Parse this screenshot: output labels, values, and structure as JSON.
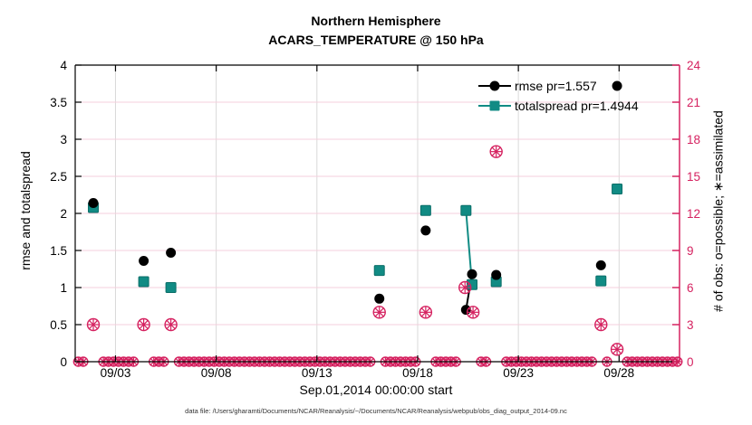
{
  "title": {
    "line1": "Northern Hemisphere",
    "line2": "ACARS_TEMPERATURE @ 150 hPa"
  },
  "caption": "data file: /Users/gharamti/Documents/NCAR/Reanalysis/~/Documents/NCAR/Reanalysis/webpub/obs_diag_output_2014-09.nc",
  "colors": {
    "rmse": "#000000",
    "totalspread": "#118B84",
    "totalspread_edge": "#0B6E68",
    "obs": "#D52260",
    "grid_horizontal": "#F5CFDC",
    "grid_vertical": "#D9D9D9",
    "axis": "#000000"
  },
  "chart_data": {
    "type": "scatter",
    "title": "Northern Hemisphere",
    "subtitle": "ACARS_TEMPERATURE @ 150 hPa",
    "xlabel": "Sep.01,2014 00:00:00 start",
    "ylabel_left": "rmse and totalspread",
    "ylabel_right": "# of obs: o=possible; ∗=assimilated",
    "x_range_days": [
      1,
      31
    ],
    "x_ticks": [
      "09/03",
      "09/08",
      "09/13",
      "09/18",
      "09/23",
      "09/28"
    ],
    "x_tick_days": [
      3,
      8,
      13,
      18,
      23,
      28
    ],
    "ylim_left": [
      0,
      4
    ],
    "yticks_left": [
      "0",
      "0.5",
      "1",
      "1.5",
      "2",
      "2.5",
      "3",
      "3.5",
      "4"
    ],
    "ytick_values_left": [
      0,
      0.5,
      1,
      1.5,
      2,
      2.5,
      3,
      3.5,
      4
    ],
    "ylim_right": [
      0,
      24
    ],
    "yticks_right": [
      "0",
      "3",
      "6",
      "9",
      "12",
      "15",
      "18",
      "21",
      "24"
    ],
    "ytick_values_right": [
      0,
      3,
      6,
      9,
      12,
      15,
      18,
      21,
      24
    ],
    "grid": true,
    "legend_position": "top-right-inside",
    "legend": [
      {
        "label": "rmse pr=1.557",
        "series": "rmse",
        "marker": "circle"
      },
      {
        "label": "totalspread pr=1.4944",
        "series": "totalspread",
        "marker": "square"
      }
    ],
    "series": [
      {
        "name": "rmse",
        "axis": "left",
        "marker": "circle",
        "days": [
          1.9,
          4.4,
          5.75,
          16.1,
          18.4,
          20.4,
          20.7,
          21.9,
          27.1,
          27.9
        ],
        "values": [
          2.14,
          1.36,
          1.47,
          0.85,
          1.77,
          0.7,
          1.18,
          1.17,
          1.3,
          3.72
        ]
      },
      {
        "name": "totalspread",
        "axis": "left",
        "marker": "square",
        "days": [
          1.9,
          4.4,
          5.75,
          16.1,
          18.4,
          20.4,
          20.7,
          21.9,
          27.1,
          27.9
        ],
        "values": [
          2.08,
          1.08,
          1.0,
          1.23,
          2.04,
          2.04,
          1.04,
          1.08,
          1.09,
          2.33
        ]
      },
      {
        "name": "obs-count",
        "axis": "right",
        "marker": "circle-asterisk",
        "days": [
          1.9,
          4.4,
          5.75,
          16.1,
          18.4,
          20.35,
          20.75,
          21.9,
          27.1,
          27.9
        ],
        "values": [
          3,
          3,
          3,
          4,
          4,
          6,
          4,
          17,
          3,
          1
        ]
      }
    ],
    "line_segments": [
      {
        "series": "rmse",
        "from_day": 20.4,
        "from_value": 0.7,
        "to_day": 20.7,
        "to_value": 1.18
      },
      {
        "series": "totalspread",
        "from_day": 20.4,
        "from_value": 2.04,
        "to_day": 20.7,
        "to_value": 1.04
      }
    ],
    "obs_zero_row": {
      "comment": "dense o/x markers at count 0 for every 6-hour bin with no obs",
      "start_day": 1.15,
      "end_day": 30.9,
      "step_day": 0.25,
      "skip_days": [
        1.9,
        4.4,
        5.75,
        16.1,
        18.4,
        20.35,
        20.75,
        21.9,
        27.1,
        27.9
      ]
    }
  }
}
